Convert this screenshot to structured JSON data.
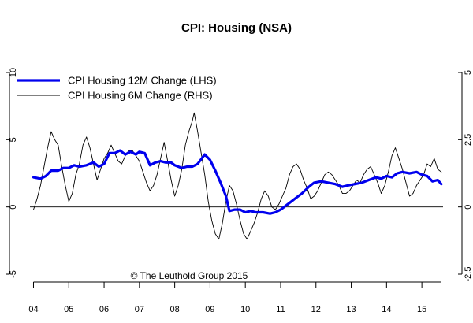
{
  "chart_data": {
    "type": "line",
    "title": "CPI: Housing (NSA)",
    "copyright": "© The Leuthold Group 2015",
    "legend_position": "top-left",
    "x_ticks": [
      "04",
      "05",
      "06",
      "07",
      "08",
      "09",
      "10",
      "11",
      "12",
      "13",
      "14",
      "15"
    ],
    "x_range": [
      2003.9,
      2015.6
    ],
    "left_axis": {
      "ticks": [
        "10",
        "5",
        "0",
        "-5"
      ],
      "range": [
        -5,
        10
      ]
    },
    "right_axis": {
      "ticks": [
        "5",
        "2.5",
        "0",
        "-2.5"
      ],
      "range": [
        -2.5,
        5
      ]
    },
    "reference_line": 0,
    "series": [
      {
        "name": "CPI Housing 12M Change (LHS)",
        "axis": "left",
        "color": "#0000ee",
        "points": [
          [
            2004.0,
            2.2
          ],
          [
            2004.2,
            2.1
          ],
          [
            2004.35,
            2.3
          ],
          [
            2004.5,
            2.7
          ],
          [
            2004.7,
            2.7
          ],
          [
            2004.85,
            2.9
          ],
          [
            2005.0,
            2.9
          ],
          [
            2005.15,
            3.1
          ],
          [
            2005.3,
            3.0
          ],
          [
            2005.5,
            3.1
          ],
          [
            2005.7,
            3.3
          ],
          [
            2005.85,
            3.0
          ],
          [
            2006.0,
            3.2
          ],
          [
            2006.15,
            4.0
          ],
          [
            2006.3,
            4.0
          ],
          [
            2006.45,
            4.2
          ],
          [
            2006.6,
            3.9
          ],
          [
            2006.75,
            4.1
          ],
          [
            2006.9,
            3.9
          ],
          [
            2007.0,
            4.1
          ],
          [
            2007.15,
            4.0
          ],
          [
            2007.3,
            3.1
          ],
          [
            2007.45,
            3.3
          ],
          [
            2007.6,
            3.4
          ],
          [
            2007.75,
            3.3
          ],
          [
            2007.9,
            3.3
          ],
          [
            2008.0,
            3.1
          ],
          [
            2008.2,
            2.9
          ],
          [
            2008.35,
            3.0
          ],
          [
            2008.5,
            3.0
          ],
          [
            2008.65,
            3.2
          ],
          [
            2008.85,
            3.9
          ],
          [
            2009.0,
            3.5
          ],
          [
            2009.15,
            2.7
          ],
          [
            2009.3,
            1.8
          ],
          [
            2009.45,
            0.8
          ],
          [
            2009.55,
            -0.3
          ],
          [
            2009.7,
            -0.2
          ],
          [
            2009.85,
            -0.2
          ],
          [
            2010.0,
            -0.4
          ],
          [
            2010.15,
            -0.3
          ],
          [
            2010.3,
            -0.4
          ],
          [
            2010.5,
            -0.4
          ],
          [
            2010.7,
            -0.5
          ],
          [
            2010.85,
            -0.4
          ],
          [
            2011.0,
            -0.2
          ],
          [
            2011.2,
            0.2
          ],
          [
            2011.4,
            0.6
          ],
          [
            2011.6,
            1.0
          ],
          [
            2011.8,
            1.5
          ],
          [
            2011.95,
            1.8
          ],
          [
            2012.15,
            1.9
          ],
          [
            2012.35,
            1.8
          ],
          [
            2012.55,
            1.7
          ],
          [
            2012.75,
            1.5
          ],
          [
            2012.9,
            1.6
          ],
          [
            2013.1,
            1.7
          ],
          [
            2013.3,
            1.8
          ],
          [
            2013.5,
            2.0
          ],
          [
            2013.7,
            2.2
          ],
          [
            2013.85,
            2.1
          ],
          [
            2014.0,
            2.3
          ],
          [
            2014.15,
            2.2
          ],
          [
            2014.3,
            2.5
          ],
          [
            2014.45,
            2.6
          ],
          [
            2014.65,
            2.5
          ],
          [
            2014.85,
            2.6
          ],
          [
            2015.0,
            2.4
          ],
          [
            2015.15,
            2.3
          ],
          [
            2015.3,
            1.9
          ],
          [
            2015.45,
            2.0
          ],
          [
            2015.55,
            1.7
          ]
        ]
      },
      {
        "name": "CPI Housing 6M Change (RHS)",
        "axis": "right",
        "color": "#000000",
        "points": [
          [
            2004.0,
            -0.1
          ],
          [
            2004.1,
            0.3
          ],
          [
            2004.2,
            0.8
          ],
          [
            2004.3,
            1.5
          ],
          [
            2004.4,
            2.2
          ],
          [
            2004.5,
            2.8
          ],
          [
            2004.6,
            2.5
          ],
          [
            2004.7,
            2.3
          ],
          [
            2004.8,
            1.5
          ],
          [
            2004.9,
            0.8
          ],
          [
            2005.0,
            0.2
          ],
          [
            2005.1,
            0.5
          ],
          [
            2005.2,
            1.2
          ],
          [
            2005.3,
            1.6
          ],
          [
            2005.4,
            2.3
          ],
          [
            2005.5,
            2.6
          ],
          [
            2005.6,
            2.2
          ],
          [
            2005.7,
            1.6
          ],
          [
            2005.8,
            1.0
          ],
          [
            2005.9,
            1.4
          ],
          [
            2006.0,
            1.8
          ],
          [
            2006.1,
            2.0
          ],
          [
            2006.2,
            2.3
          ],
          [
            2006.3,
            2.0
          ],
          [
            2006.4,
            1.7
          ],
          [
            2006.5,
            1.6
          ],
          [
            2006.6,
            1.9
          ],
          [
            2006.7,
            2.1
          ],
          [
            2006.8,
            2.1
          ],
          [
            2006.9,
            1.9
          ],
          [
            2007.0,
            1.7
          ],
          [
            2007.1,
            1.3
          ],
          [
            2007.2,
            0.9
          ],
          [
            2007.3,
            0.6
          ],
          [
            2007.4,
            0.8
          ],
          [
            2007.5,
            1.2
          ],
          [
            2007.6,
            1.8
          ],
          [
            2007.7,
            2.4
          ],
          [
            2007.8,
            1.7
          ],
          [
            2007.9,
            1.0
          ],
          [
            2008.0,
            0.4
          ],
          [
            2008.1,
            0.8
          ],
          [
            2008.2,
            1.4
          ],
          [
            2008.3,
            2.3
          ],
          [
            2008.4,
            2.8
          ],
          [
            2008.5,
            3.2
          ],
          [
            2008.55,
            3.5
          ],
          [
            2008.65,
            2.8
          ],
          [
            2008.75,
            2.0
          ],
          [
            2008.85,
            1.2
          ],
          [
            2008.95,
            0.2
          ],
          [
            2009.05,
            -0.5
          ],
          [
            2009.15,
            -1.0
          ],
          [
            2009.25,
            -1.2
          ],
          [
            2009.35,
            -0.6
          ],
          [
            2009.45,
            0.2
          ],
          [
            2009.55,
            0.8
          ],
          [
            2009.65,
            0.6
          ],
          [
            2009.75,
            0.1
          ],
          [
            2009.85,
            -0.5
          ],
          [
            2009.95,
            -1.0
          ],
          [
            2010.05,
            -1.2
          ],
          [
            2010.15,
            -0.9
          ],
          [
            2010.25,
            -0.6
          ],
          [
            2010.35,
            -0.2
          ],
          [
            2010.45,
            0.3
          ],
          [
            2010.55,
            0.6
          ],
          [
            2010.65,
            0.4
          ],
          [
            2010.75,
            0.0
          ],
          [
            2010.85,
            -0.1
          ],
          [
            2010.95,
            0.1
          ],
          [
            2011.05,
            0.4
          ],
          [
            2011.15,
            0.7
          ],
          [
            2011.25,
            1.2
          ],
          [
            2011.35,
            1.5
          ],
          [
            2011.45,
            1.6
          ],
          [
            2011.55,
            1.4
          ],
          [
            2011.65,
            1.0
          ],
          [
            2011.75,
            0.7
          ],
          [
            2011.85,
            0.3
          ],
          [
            2011.95,
            0.4
          ],
          [
            2012.05,
            0.6
          ],
          [
            2012.15,
            0.9
          ],
          [
            2012.25,
            1.2
          ],
          [
            2012.35,
            1.3
          ],
          [
            2012.45,
            1.2
          ],
          [
            2012.55,
            1.0
          ],
          [
            2012.65,
            0.8
          ],
          [
            2012.75,
            0.5
          ],
          [
            2012.85,
            0.5
          ],
          [
            2012.95,
            0.6
          ],
          [
            2013.05,
            0.8
          ],
          [
            2013.15,
            1.0
          ],
          [
            2013.25,
            0.9
          ],
          [
            2013.35,
            1.2
          ],
          [
            2013.45,
            1.4
          ],
          [
            2013.55,
            1.5
          ],
          [
            2013.65,
            1.2
          ],
          [
            2013.75,
            0.9
          ],
          [
            2013.85,
            0.5
          ],
          [
            2013.95,
            0.8
          ],
          [
            2014.05,
            1.3
          ],
          [
            2014.15,
            1.9
          ],
          [
            2014.25,
            2.2
          ],
          [
            2014.35,
            1.8
          ],
          [
            2014.45,
            1.4
          ],
          [
            2014.55,
            0.9
          ],
          [
            2014.65,
            0.4
          ],
          [
            2014.75,
            0.5
          ],
          [
            2014.85,
            0.8
          ],
          [
            2014.95,
            1.0
          ],
          [
            2015.05,
            1.2
          ],
          [
            2015.15,
            1.6
          ],
          [
            2015.25,
            1.5
          ],
          [
            2015.35,
            1.8
          ],
          [
            2015.45,
            1.4
          ],
          [
            2015.55,
            1.3
          ]
        ]
      }
    ]
  }
}
